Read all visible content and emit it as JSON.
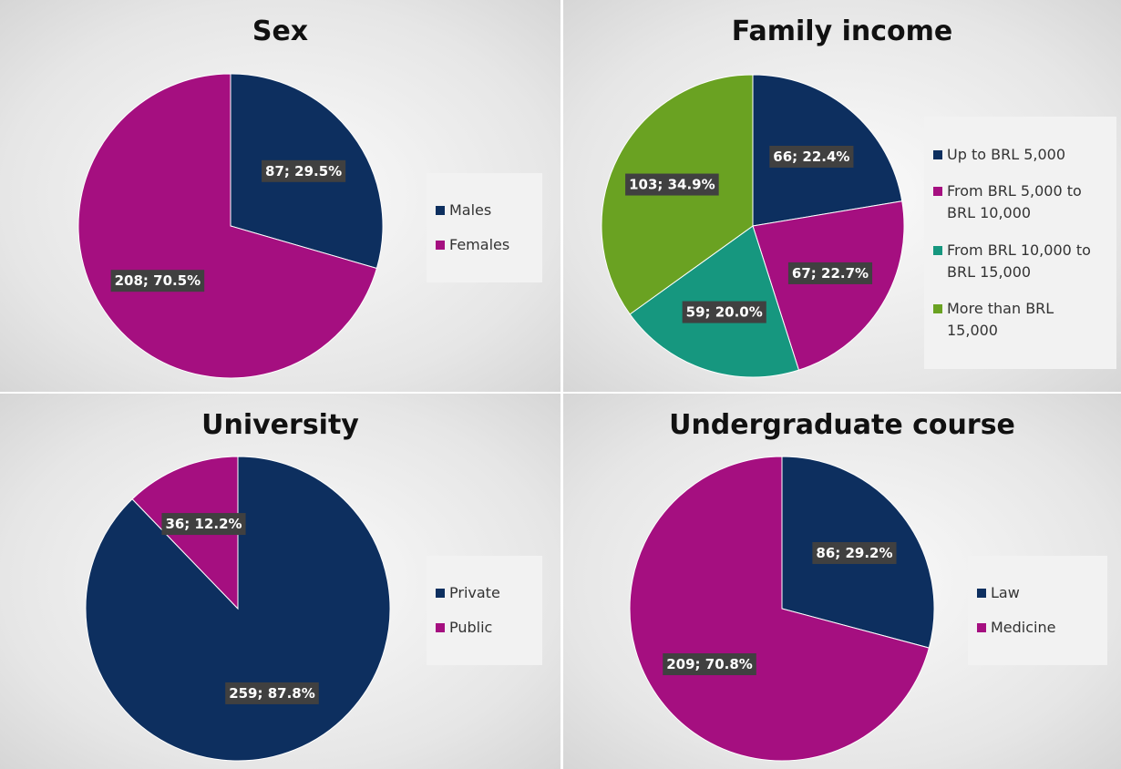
{
  "chart_data": [
    {
      "type": "pie",
      "title": "Sex",
      "legend": "right",
      "categories": [
        "Males",
        "Females"
      ],
      "values": [
        87,
        208
      ],
      "value_labels": [
        "87; 29.5%",
        "208; 70.5%"
      ],
      "colors": [
        "#0d2f5f",
        "#a50f80"
      ]
    },
    {
      "type": "pie",
      "title": "Family income",
      "legend": "right",
      "categories": [
        "Up to BRL 5,000",
        "From BRL 5,000 to BRL 10,000",
        "From BRL 10,000 to BRL 15,000",
        "More than BRL 15,000"
      ],
      "values": [
        66,
        67,
        59,
        103
      ],
      "value_labels": [
        "66; 22.4%",
        "67; 22.7%",
        "59; 20.0%",
        "103; 34.9%"
      ],
      "colors": [
        "#0d2f5f",
        "#a50f80",
        "#16977f",
        "#6aa222"
      ]
    },
    {
      "type": "pie",
      "title": "University",
      "legend": "right",
      "categories": [
        "Private",
        "Public"
      ],
      "values": [
        259,
        36
      ],
      "value_labels": [
        "259; 87.8%",
        "36; 12.2%"
      ],
      "colors": [
        "#0d2f5f",
        "#a50f80"
      ]
    },
    {
      "type": "pie",
      "title": "Undergraduate course",
      "legend": "right",
      "categories": [
        "Law",
        "Medicine"
      ],
      "values": [
        86,
        209
      ],
      "value_labels": [
        "86; 29.2%",
        "209; 70.8%"
      ],
      "colors": [
        "#0d2f5f",
        "#a50f80"
      ]
    }
  ]
}
